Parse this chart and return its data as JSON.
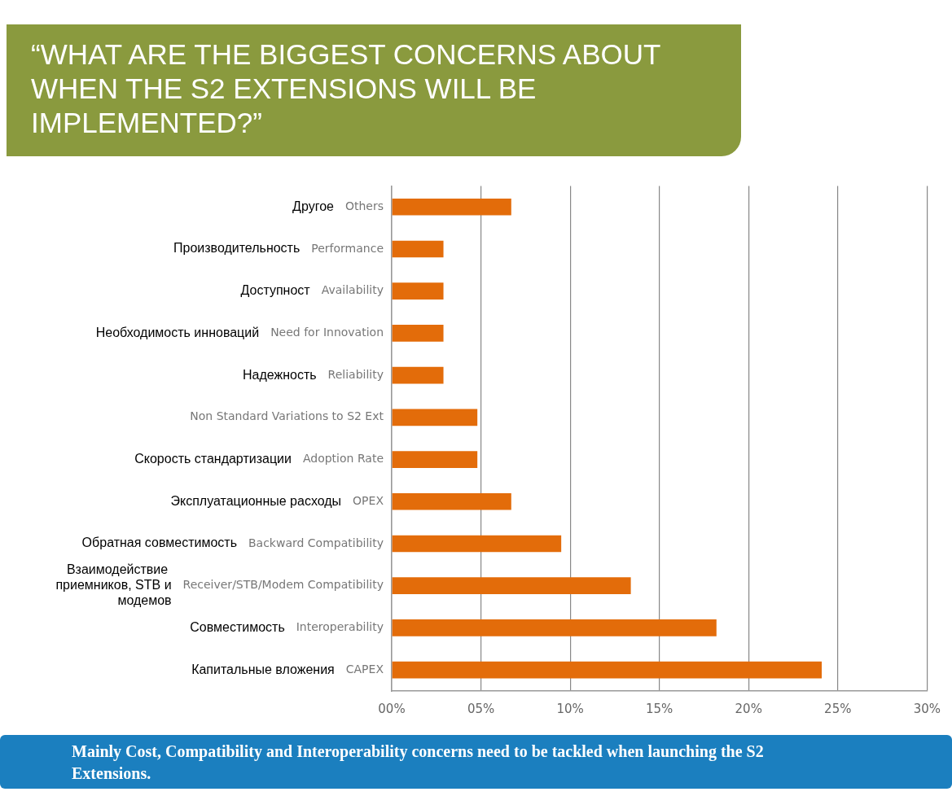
{
  "chart_data": {
    "type": "bar",
    "orientation": "horizontal",
    "title": "“WHAT ARE THE BIGGEST CONCERNS ABOUT WHEN THE S2 EXTENSIONS WILL BE IMPLEMENTED?”",
    "categories": [
      "Others",
      "Performance",
      "Availability",
      "Need for Innovation",
      "Reliability",
      "Non Standard Variations to S2 Ext",
      "Adoption Rate",
      "OPEX",
      "Backward Compatibility",
      "Receiver/STB/Modem Compatibility",
      "Interoperability",
      "CAPEX"
    ],
    "values": [
      6.7,
      2.9,
      2.9,
      2.9,
      2.9,
      4.8,
      4.8,
      6.7,
      9.5,
      13.4,
      18.2,
      24.1
    ],
    "color": "#e36c0a",
    "xlim": [
      0,
      30
    ],
    "xticks": [
      {
        "value": 0,
        "label": "00%"
      },
      {
        "value": 5,
        "label": "05%"
      },
      {
        "value": 10,
        "label": "10%"
      },
      {
        "value": 15,
        "label": "15%"
      },
      {
        "value": 20,
        "label": "20%"
      },
      {
        "value": 25,
        "label": "25%"
      },
      {
        "value": 30,
        "label": "30%"
      }
    ],
    "grid": "x",
    "annotations": [
      "Другое",
      "Производительность",
      "Доступност",
      "Необходимость инноваций",
      "Надежность",
      "Скорость стандартизации",
      "Эксплуатационные расходы",
      "Обратная совместимость",
      "Взаимодействие  приемников, STB и модемов",
      "Совместимость",
      "Капитальные вложения",
      "Mainly Cost, Compatibility and Interoperability concerns need to be tackled when launching the S2 Extensions."
    ]
  }
}
